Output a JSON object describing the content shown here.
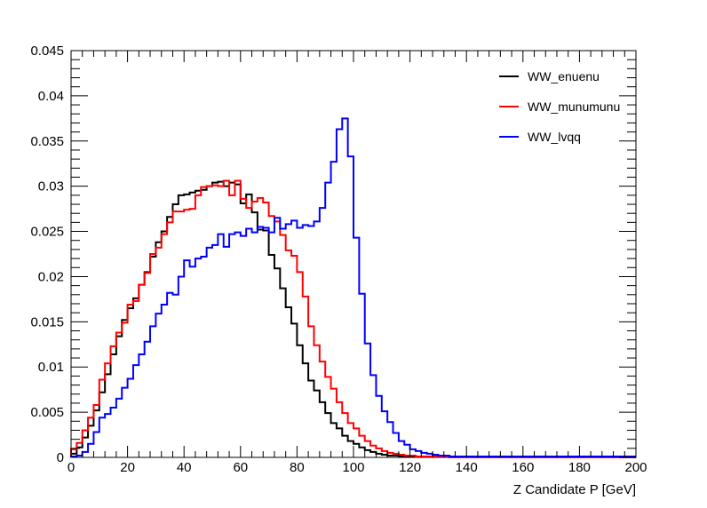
{
  "chart_data": {
    "type": "histogram",
    "xlabel": "Z Candidate P [GeV]",
    "ylabel": "",
    "xlim": [
      0,
      200
    ],
    "ylim": [
      0,
      0.045
    ],
    "bin_width": 2,
    "x_ticks": [
      0,
      20,
      40,
      60,
      80,
      100,
      120,
      140,
      160,
      180,
      200
    ],
    "x_tick_labels": [
      "0",
      "20",
      "40",
      "60",
      "80",
      "100",
      "120",
      "140",
      "160",
      "180",
      "200"
    ],
    "y_ticks": [
      0,
      0.005,
      0.01,
      0.015,
      0.02,
      0.025,
      0.03,
      0.035,
      0.04,
      0.045
    ],
    "y_tick_labels": [
      "0",
      "0.005",
      "0.01",
      "0.015",
      "0.02",
      "0.025",
      "0.03",
      "0.035",
      "0.04",
      "0.045"
    ],
    "grid": false,
    "legend_position": "top-right",
    "series": [
      {
        "name": "WW_enuenu",
        "color": "#000000",
        "values": [
          0.0004,
          0.0011,
          0.0022,
          0.0035,
          0.0052,
          0.0072,
          0.0092,
          0.0114,
          0.0134,
          0.0152,
          0.0165,
          0.0176,
          0.0191,
          0.0205,
          0.0222,
          0.0238,
          0.025,
          0.0266,
          0.028,
          0.029,
          0.0291,
          0.0293,
          0.0295,
          0.0296,
          0.03,
          0.0304,
          0.0305,
          0.03,
          0.0304,
          0.0302,
          0.0281,
          0.0291,
          0.0271,
          0.0252,
          0.0251,
          0.0224,
          0.0209,
          0.0187,
          0.0166,
          0.0148,
          0.0124,
          0.0104,
          0.0085,
          0.0074,
          0.0061,
          0.0049,
          0.0038,
          0.0032,
          0.0024,
          0.0018,
          0.0015,
          0.0011,
          0.0008,
          0.0006,
          0.0004,
          0.0003,
          0.0002,
          0.0002,
          0.0001,
          0.0001,
          0.0001,
          0.0001,
          0.0001,
          0.0001,
          0.0001,
          0.0001,
          0.0001,
          0.0,
          0.0,
          0.0,
          0.0,
          0.0,
          0.0,
          0.0,
          0.0,
          0.0,
          0.0,
          0.0,
          0.0,
          0.0,
          0.0,
          0.0,
          0.0,
          0.0,
          0.0,
          0.0,
          0.0,
          0.0,
          0.0,
          0.0,
          0.0,
          0.0,
          0.0,
          0.0,
          0.0,
          0.0,
          0.0,
          0.0,
          0.0,
          0.0
        ]
      },
      {
        "name": "WW_munumunu",
        "color": "#ff0000",
        "values": [
          0.0009,
          0.0016,
          0.003,
          0.0044,
          0.0058,
          0.0086,
          0.0104,
          0.0123,
          0.0138,
          0.0149,
          0.0169,
          0.0173,
          0.0191,
          0.0204,
          0.0225,
          0.0232,
          0.0247,
          0.026,
          0.0272,
          0.0272,
          0.0274,
          0.0275,
          0.029,
          0.0299,
          0.03,
          0.0301,
          0.03,
          0.0306,
          0.029,
          0.0306,
          0.0286,
          0.0276,
          0.0283,
          0.0287,
          0.0282,
          0.0267,
          0.0261,
          0.0246,
          0.0229,
          0.0223,
          0.0205,
          0.0178,
          0.0145,
          0.0124,
          0.0106,
          0.0089,
          0.0076,
          0.0061,
          0.0049,
          0.0038,
          0.0032,
          0.0024,
          0.0018,
          0.0013,
          0.001,
          0.0007,
          0.0005,
          0.0004,
          0.0003,
          0.0002,
          0.0002,
          0.0001,
          0.0001,
          0.0001,
          0.0001,
          0.0001,
          0.0001,
          0.0,
          0.0,
          0.0,
          0.0,
          0.0,
          0.0,
          0.0,
          0.0,
          0.0,
          0.0,
          0.0,
          0.0,
          0.0,
          0.0,
          0.0,
          0.0,
          0.0,
          0.0,
          0.0,
          0.0,
          0.0,
          0.0,
          0.0,
          0.0,
          0.0,
          0.0,
          0.0,
          0.0,
          0.0,
          0.0,
          0.0,
          0.0,
          0.0
        ]
      },
      {
        "name": "WW_lvqq",
        "color": "#0000ff",
        "values": [
          0.0001,
          0.0002,
          0.0006,
          0.0015,
          0.0028,
          0.0044,
          0.0048,
          0.0055,
          0.0065,
          0.0077,
          0.0087,
          0.0102,
          0.0114,
          0.0128,
          0.0145,
          0.0159,
          0.0169,
          0.0182,
          0.018,
          0.02,
          0.0218,
          0.0211,
          0.022,
          0.0222,
          0.0232,
          0.0235,
          0.0247,
          0.0233,
          0.0247,
          0.0249,
          0.0245,
          0.0253,
          0.0249,
          0.0255,
          0.0254,
          0.0249,
          0.0265,
          0.0253,
          0.0258,
          0.0262,
          0.0254,
          0.0257,
          0.0256,
          0.0261,
          0.0276,
          0.0304,
          0.0327,
          0.0363,
          0.0375,
          0.0333,
          0.0243,
          0.0181,
          0.0126,
          0.0091,
          0.0068,
          0.0051,
          0.0039,
          0.0027,
          0.0018,
          0.0014,
          0.0009,
          0.0007,
          0.0005,
          0.0004,
          0.0003,
          0.0002,
          0.0002,
          0.0001,
          0.0001,
          0.0001,
          0.0001,
          0.0001,
          0.0001,
          0.0001,
          0.0001,
          0.0001,
          0.0001,
          0.0001,
          0.0001,
          0.0001,
          0.0001,
          0.0001,
          0.0001,
          0.0001,
          0.0001,
          0.0001,
          0.0001,
          0.0001,
          0.0001,
          0.0001,
          0.0001,
          0.0001,
          0.0001,
          0.0001,
          0.0001,
          0.0001,
          0.0001,
          0.0001,
          0.0001,
          0.0001
        ]
      }
    ]
  }
}
